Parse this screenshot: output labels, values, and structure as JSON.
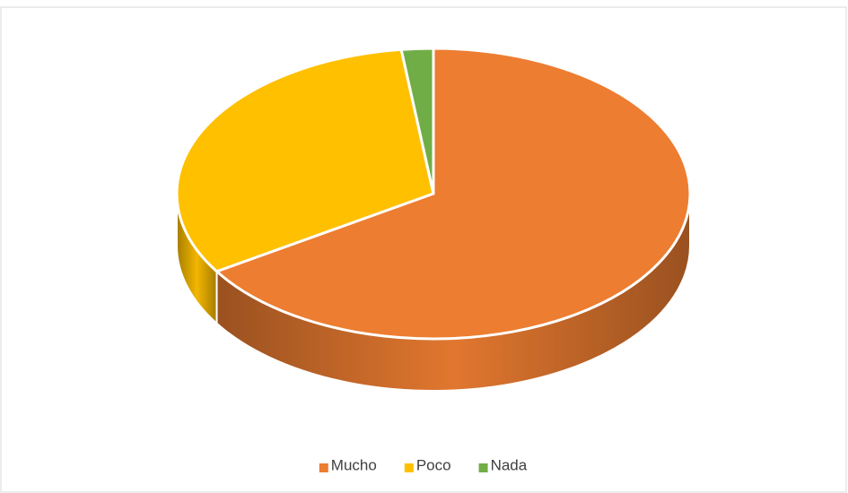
{
  "chart_data": {
    "type": "pie3d",
    "categories": [
      "Mucho",
      "Poco",
      "Nada"
    ],
    "values": [
      66,
      32,
      2
    ],
    "colors": [
      "#ed7d31",
      "#ffc000",
      "#70ad47"
    ],
    "legend": "bottom"
  }
}
